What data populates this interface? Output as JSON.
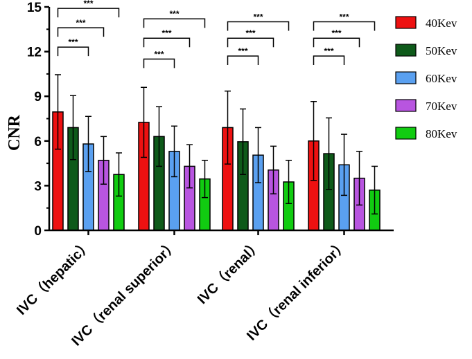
{
  "chart_data": {
    "type": "bar",
    "title": "",
    "xlabel": "",
    "ylabel": "CNR",
    "ylim": [
      0,
      15
    ],
    "yticks": [
      "0",
      "3",
      "6",
      "9",
      "12",
      "15"
    ],
    "categories": [
      "IVC（hepatic）",
      "IVC（renal superior）",
      "IVC（renal）",
      "IVC（renal inferior）"
    ],
    "series": [
      {
        "name": "40Kev",
        "color": "#ee1111",
        "values": [
          7.95,
          7.25,
          6.9,
          6.0
        ],
        "errors": [
          2.5,
          2.35,
          2.45,
          2.65
        ]
      },
      {
        "name": "50Kev",
        "color": "#0e5a1a",
        "values": [
          6.9,
          6.3,
          5.95,
          5.15
        ],
        "errors": [
          2.15,
          2.0,
          2.2,
          2.4
        ]
      },
      {
        "name": "60Kev",
        "color": "#5aa0f0",
        "values": [
          5.8,
          5.3,
          5.05,
          4.4
        ],
        "errors": [
          1.85,
          1.7,
          1.85,
          2.05
        ]
      },
      {
        "name": "70Kev",
        "color": "#b855e0",
        "values": [
          4.7,
          4.3,
          4.05,
          3.5
        ],
        "errors": [
          1.6,
          1.45,
          1.6,
          1.8
        ]
      },
      {
        "name": "80Kev",
        "color": "#11cc11",
        "values": [
          3.75,
          3.45,
          3.25,
          2.7
        ],
        "errors": [
          1.45,
          1.25,
          1.45,
          1.6
        ]
      }
    ],
    "significance": {
      "label": "***",
      "comparisons": [
        {
          "category": 0,
          "from_series": 0,
          "to_series": 2,
          "level": 12.3
        },
        {
          "category": 0,
          "from_series": 0,
          "to_series": 3,
          "level": 13.6
        },
        {
          "category": 0,
          "from_series": 0,
          "to_series": 4,
          "level": 14.9
        },
        {
          "category": 1,
          "from_series": 0,
          "to_series": 2,
          "level": 11.5
        },
        {
          "category": 1,
          "from_series": 0,
          "to_series": 3,
          "level": 12.9
        },
        {
          "category": 1,
          "from_series": 0,
          "to_series": 4,
          "level": 14.2
        },
        {
          "category": 2,
          "from_series": 0,
          "to_series": 2,
          "level": 11.7
        },
        {
          "category": 2,
          "from_series": 0,
          "to_series": 3,
          "level": 12.9
        },
        {
          "category": 2,
          "from_series": 0,
          "to_series": 4,
          "level": 14.0
        },
        {
          "category": 3,
          "from_series": 0,
          "to_series": 2,
          "level": 11.7
        },
        {
          "category": 3,
          "from_series": 0,
          "to_series": 3,
          "level": 12.9
        },
        {
          "category": 3,
          "from_series": 0,
          "to_series": 4,
          "level": 14.0
        }
      ]
    },
    "legend_position": "right",
    "grid": false
  }
}
